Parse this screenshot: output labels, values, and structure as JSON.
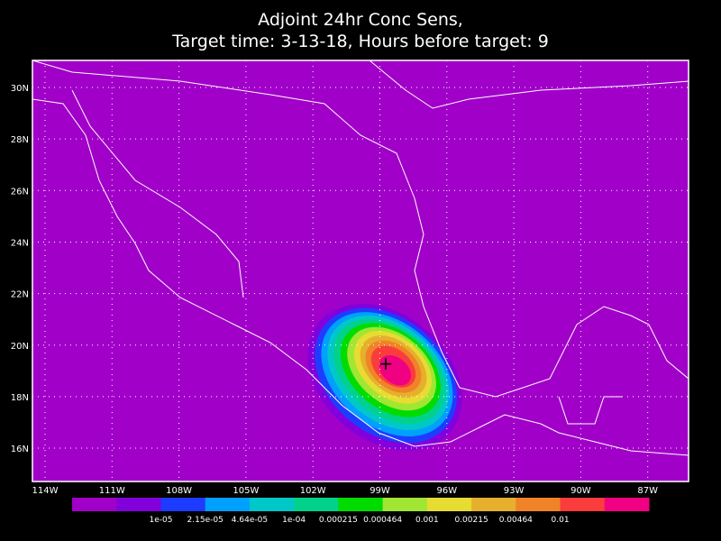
{
  "header": {
    "title_line1": "Adjoint 24hr Conc Sens,",
    "title_line2": "Target time: 3-13-18, Hours before target: 9"
  },
  "map": {
    "lat_labels": [
      "30N",
      "28N",
      "26N",
      "24N",
      "22N",
      "20N",
      "18N",
      "16N"
    ],
    "lon_labels": [
      "114W",
      "111W",
      "108W",
      "105W",
      "102W",
      "99W",
      "96W",
      "93W",
      "90W",
      "87W"
    ]
  },
  "colorbar": {
    "colors": [
      "#a000c8",
      "#8200dc",
      "#1e3cff",
      "#00a0ff",
      "#00c8c8",
      "#00d28c",
      "#00dc00",
      "#a0e632",
      "#e6dc32",
      "#e6af2d",
      "#f08228",
      "#fa3c3c",
      "#f00082"
    ],
    "labels": [
      "1e-05",
      "2.15e-05",
      "4.64e-05",
      "1e-04",
      "0.000215",
      "0.000464",
      "0.001",
      "0.00215",
      "0.00464",
      "0.01"
    ]
  }
}
